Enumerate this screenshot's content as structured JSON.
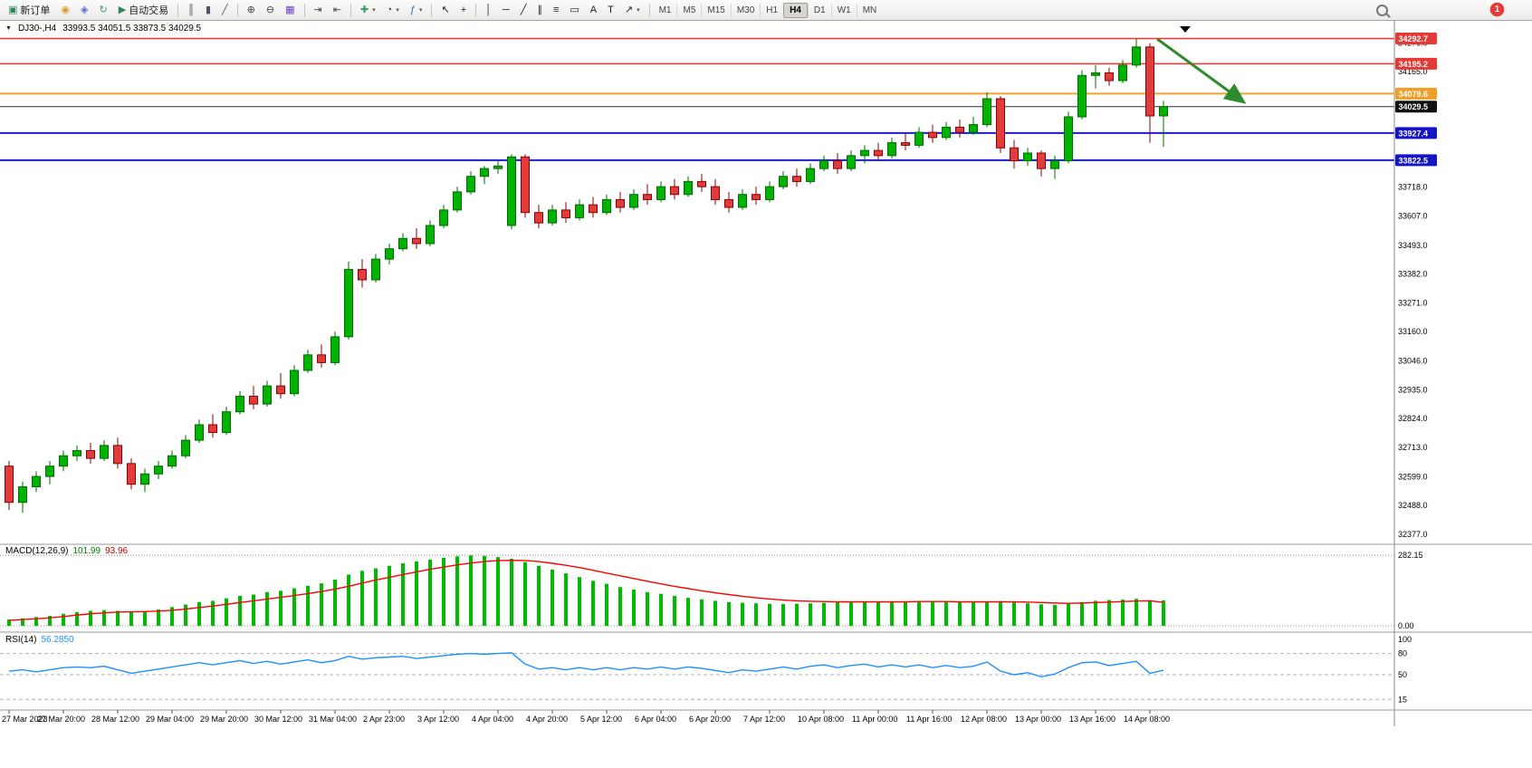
{
  "toolbar": {
    "caret_glyph": "▾",
    "groups": [
      [
        {
          "name": "new-order-button",
          "icon": "new-order-icon",
          "glyph": "▣",
          "color": "#2f855a",
          "label": "新订单"
        },
        {
          "name": "deposit-button",
          "icon": "coins-icon",
          "glyph": "◉",
          "color": "#d69e2e"
        },
        {
          "name": "community-button",
          "icon": "globe-icon",
          "glyph": "◈",
          "color": "#5a67d8"
        },
        {
          "name": "refresh-button",
          "icon": "refresh-icon",
          "glyph": "↻",
          "color": "#38a169"
        },
        {
          "name": "autotrading-button",
          "icon": "play-icon",
          "glyph": "▶",
          "color": "#2f855a",
          "label": "自动交易"
        }
      ],
      [
        {
          "name": "bar-chart-button",
          "icon": "bar-chart-icon",
          "glyph": "║",
          "color": "#4a5568"
        },
        {
          "name": "candlestick-chart-button",
          "icon": "candlestick-icon",
          "glyph": "▮",
          "color": "#4a5568"
        },
        {
          "name": "line-chart-button",
          "icon": "line-chart-icon",
          "glyph": "╱",
          "color": "#4a5568"
        }
      ],
      [
        {
          "name": "zoom-in-button",
          "icon": "zoom-in-icon",
          "glyph": "⊕",
          "color": "#444444"
        },
        {
          "name": "zoom-out-button",
          "icon": "zoom-out-icon",
          "glyph": "⊖",
          "color": "#444444"
        },
        {
          "name": "tile-windows-button",
          "icon": "tile-windows-icon",
          "glyph": "▦",
          "color": "#6b46c1"
        }
      ],
      [
        {
          "name": "auto-scroll-button",
          "icon": "auto-scroll-icon",
          "glyph": "⇥",
          "color": "#444444"
        },
        {
          "name": "chart-shift-button",
          "icon": "chart-shift-icon",
          "glyph": "⇤",
          "color": "#444444"
        }
      ],
      [
        {
          "name": "new-chart-button",
          "icon": "new-chart-icon",
          "glyph": "✚",
          "color": "#38a169",
          "caret": true
        },
        {
          "name": "periods-button",
          "icon": "clock-icon",
          "glyph": "◔",
          "color": "#444444",
          "caret": true
        },
        {
          "name": "indicators-button",
          "icon": "indicators-icon",
          "glyph": "ƒ",
          "color": "#2b6cb0",
          "caret": true
        }
      ],
      [
        {
          "name": "cursor-button",
          "icon": "cursor-icon",
          "glyph": "↖",
          "color": "#222222"
        },
        {
          "name": "crosshair-button",
          "icon": "crosshair-icon",
          "glyph": "+",
          "color": "#222222"
        }
      ],
      [
        {
          "name": "vertical-line-button",
          "icon": "vertical-line-icon",
          "glyph": "│",
          "color": "#222222"
        },
        {
          "name": "horizontal-line-button",
          "icon": "horizontal-line-icon",
          "glyph": "─",
          "color": "#222222"
        },
        {
          "name": "trendline-button",
          "icon": "trendline-icon",
          "glyph": "╱",
          "color": "#222222"
        },
        {
          "name": "channel-button",
          "icon": "channel-icon",
          "glyph": "∥",
          "color": "#222222"
        },
        {
          "name": "fibonacci-button",
          "icon": "fibonacci-icon",
          "glyph": "≡",
          "color": "#222222"
        },
        {
          "name": "shapes-button",
          "icon": "shapes-icon",
          "glyph": "▭",
          "color": "#222222"
        },
        {
          "name": "text-button",
          "icon": "text-icon",
          "glyph": "A",
          "color": "#222222"
        },
        {
          "name": "label-button",
          "icon": "label-icon",
          "glyph": "T",
          "color": "#222222"
        },
        {
          "name": "arrows-button",
          "icon": "arrow-object-icon",
          "glyph": "↗",
          "color": "#222222",
          "caret": true
        }
      ]
    ],
    "timeframes": [
      "M1",
      "M5",
      "M15",
      "M30",
      "H1",
      "H4",
      "D1",
      "W1",
      "MN"
    ],
    "active_timeframe": "H4",
    "notification_count": "1"
  },
  "chart": {
    "header": {
      "collapse_glyph": "▼",
      "symbol": "DJ30-,H4",
      "ohlc": "33993.5 34051.5 33873.5 34029.5"
    },
    "price_scale": [
      "34276.0",
      "34165.0",
      "33718.0",
      "33607.0",
      "33493.0",
      "33382.0",
      "33271.0",
      "33160.0",
      "33046.0",
      "32935.0",
      "32824.0",
      "32713.0",
      "32599.0",
      "32488.0",
      "32377.0"
    ],
    "hlines": [
      {
        "name": "resistance-line-1",
        "price": 34292.7,
        "label": "34292.7",
        "color": "#ff3030",
        "badge": "#e53935",
        "width": 1.5
      },
      {
        "name": "resistance-line-2",
        "price": 34195.2,
        "label": "34195.2",
        "color": "#ff3030",
        "badge": "#e53935",
        "width": 1.5
      },
      {
        "name": "pivot-line",
        "price": 34079.6,
        "label": "34079.6",
        "color": "#f0a030",
        "badge": "#ef9f28",
        "width": 2
      },
      {
        "name": "current-price-line",
        "price": 34029.5,
        "label": "34029.5",
        "color": "#303030",
        "badge": "#111111",
        "width": 1
      },
      {
        "name": "support-line-1",
        "price": 33927.4,
        "label": "33927.4",
        "color": "#1a1ad8",
        "badge": "#1515c8",
        "width": 2
      },
      {
        "name": "support-line-2",
        "price": 33822.5,
        "label": "33822.5",
        "color": "#1a1ad8",
        "badge": "#1515c8",
        "width": 2
      }
    ],
    "time_labels": [
      "27 Mar 2023",
      "27 Mar 20:00",
      "28 Mar 12:00",
      "29 Mar 04:00",
      "29 Mar 20:00",
      "30 Mar 12:00",
      "31 Mar 04:00",
      "2 Apr 23:00",
      "3 Apr 12:00",
      "4 Apr 04:00",
      "4 Apr 20:00",
      "5 Apr 12:00",
      "6 Apr 04:00",
      "6 Apr 20:00",
      "7 Apr 12:00",
      "10 Apr 08:00",
      "11 Apr 00:00",
      "11 Apr 16:00",
      "12 Apr 08:00",
      "13 Apr 00:00",
      "13 Apr 16:00",
      "14 Apr 08:00"
    ],
    "annotation_arrow_color": "#2e8b2e",
    "candle_up_color": "#00b300",
    "candle_up_border": "#006b00",
    "candle_down_color": "#e23b3b",
    "candle_down_border": "#8b0000"
  },
  "indicators": {
    "macd": {
      "label": "MACD(12,26,9)",
      "value_main": "101.99",
      "value_signal": "93.96",
      "scale_top": "282.15",
      "scale_bottom": "0.00",
      "histogram_color": "#00bb00",
      "signal_color": "#ff0000"
    },
    "rsi": {
      "label": "RSI(14)",
      "value": "56.2850",
      "levels": [
        "100",
        "80",
        "50",
        "15"
      ],
      "level_values": [
        100,
        80,
        50,
        15
      ],
      "line_color": "#1e90ff"
    }
  },
  "chart_data": {
    "type": "candlestick",
    "symbol": "DJ30-",
    "timeframe": "H4",
    "title": "DJ30-,H4 33993.5 34051.5 33873.5 34029.5",
    "ohlc_current": {
      "open": 33993.5,
      "high": 34051.5,
      "low": 33873.5,
      "close": 34029.5
    },
    "price_range": [
      32345,
      34340
    ],
    "x_range": [
      "27 Mar 2023",
      "14 Apr 2023 08:00"
    ],
    "candles": [
      [
        32640,
        32660,
        32470,
        32500
      ],
      [
        32500,
        32580,
        32460,
        32560
      ],
      [
        32560,
        32620,
        32540,
        32600
      ],
      [
        32600,
        32660,
        32570,
        32640
      ],
      [
        32640,
        32700,
        32620,
        32680
      ],
      [
        32680,
        32720,
        32660,
        32700
      ],
      [
        32700,
        32730,
        32650,
        32670
      ],
      [
        32670,
        32740,
        32660,
        32720
      ],
      [
        32720,
        32750,
        32630,
        32650
      ],
      [
        32650,
        32670,
        32550,
        32570
      ],
      [
        32570,
        32630,
        32540,
        32610
      ],
      [
        32610,
        32660,
        32590,
        32640
      ],
      [
        32640,
        32700,
        32630,
        32680
      ],
      [
        32680,
        32760,
        32670,
        32740
      ],
      [
        32740,
        32820,
        32730,
        32800
      ],
      [
        32800,
        32840,
        32750,
        32770
      ],
      [
        32770,
        32870,
        32760,
        32850
      ],
      [
        32850,
        32930,
        32840,
        32910
      ],
      [
        32910,
        32950,
        32860,
        32880
      ],
      [
        32880,
        32970,
        32870,
        32950
      ],
      [
        32950,
        33000,
        32900,
        32920
      ],
      [
        32920,
        33030,
        32910,
        33010
      ],
      [
        33010,
        33090,
        33000,
        33070
      ],
      [
        33070,
        33110,
        33020,
        33040
      ],
      [
        33040,
        33160,
        33030,
        33140
      ],
      [
        33140,
        33430,
        33130,
        33400
      ],
      [
        33400,
        33440,
        33330,
        33360
      ],
      [
        33360,
        33460,
        33350,
        33440
      ],
      [
        33440,
        33500,
        33420,
        33480
      ],
      [
        33480,
        33540,
        33470,
        33520
      ],
      [
        33520,
        33560,
        33480,
        33500
      ],
      [
        33500,
        33590,
        33490,
        33570
      ],
      [
        33570,
        33650,
        33560,
        33630
      ],
      [
        33630,
        33720,
        33620,
        33700
      ],
      [
        33700,
        33780,
        33690,
        33760
      ],
      [
        33760,
        33800,
        33730,
        33790
      ],
      [
        33790,
        33820,
        33770,
        33800
      ],
      [
        33570,
        33845,
        33555,
        33835
      ],
      [
        33835,
        33845,
        33600,
        33620
      ],
      [
        33620,
        33650,
        33560,
        33580
      ],
      [
        33580,
        33650,
        33570,
        33630
      ],
      [
        33630,
        33660,
        33580,
        33600
      ],
      [
        33600,
        33670,
        33590,
        33650
      ],
      [
        33650,
        33680,
        33600,
        33620
      ],
      [
        33620,
        33690,
        33610,
        33670
      ],
      [
        33670,
        33700,
        33620,
        33640
      ],
      [
        33640,
        33710,
        33630,
        33690
      ],
      [
        33690,
        33730,
        33650,
        33670
      ],
      [
        33670,
        33740,
        33660,
        33720
      ],
      [
        33720,
        33750,
        33670,
        33690
      ],
      [
        33690,
        33760,
        33680,
        33740
      ],
      [
        33740,
        33770,
        33700,
        33720
      ],
      [
        33720,
        33750,
        33650,
        33670
      ],
      [
        33670,
        33700,
        33620,
        33640
      ],
      [
        33640,
        33710,
        33630,
        33690
      ],
      [
        33690,
        33720,
        33650,
        33670
      ],
      [
        33670,
        33740,
        33660,
        33720
      ],
      [
        33720,
        33780,
        33710,
        33760
      ],
      [
        33760,
        33790,
        33720,
        33740
      ],
      [
        33740,
        33810,
        33730,
        33790
      ],
      [
        33790,
        33840,
        33780,
        33820
      ],
      [
        33820,
        33850,
        33770,
        33790
      ],
      [
        33790,
        33860,
        33780,
        33840
      ],
      [
        33840,
        33880,
        33810,
        33860
      ],
      [
        33860,
        33890,
        33820,
        33840
      ],
      [
        33840,
        33910,
        33830,
        33890
      ],
      [
        33890,
        33930,
        33860,
        33880
      ],
      [
        33880,
        33950,
        33870,
        33930
      ],
      [
        33930,
        33960,
        33890,
        33910
      ],
      [
        33910,
        33970,
        33900,
        33950
      ],
      [
        33950,
        33980,
        33910,
        33930
      ],
      [
        33930,
        33990,
        33920,
        33960
      ],
      [
        33960,
        34085,
        33950,
        34060
      ],
      [
        34060,
        34070,
        33850,
        33870
      ],
      [
        33870,
        33900,
        33790,
        33820
      ],
      [
        33820,
        33870,
        33800,
        33850
      ],
      [
        33850,
        33860,
        33760,
        33790
      ],
      [
        33790,
        33840,
        33750,
        33820
      ],
      [
        33820,
        34010,
        33810,
        33990
      ],
      [
        33990,
        34170,
        33980,
        34150
      ],
      [
        34150,
        34190,
        34100,
        34160
      ],
      [
        34160,
        34180,
        34110,
        34130
      ],
      [
        34130,
        34210,
        34120,
        34190
      ],
      [
        34190,
        34292,
        34180,
        34260
      ],
      [
        34260,
        34275,
        33890,
        33993.5
      ],
      [
        33993.5,
        34051.5,
        33873.5,
        34029.5
      ]
    ],
    "macd_histogram": [
      25,
      30,
      35,
      40,
      48,
      55,
      60,
      63,
      60,
      55,
      58,
      65,
      75,
      85,
      95,
      100,
      110,
      120,
      125,
      135,
      140,
      150,
      160,
      170,
      185,
      205,
      220,
      230,
      240,
      250,
      258,
      265,
      272,
      278,
      282,
      280,
      275,
      268,
      255,
      240,
      225,
      210,
      195,
      180,
      168,
      155,
      145,
      135,
      128,
      120,
      112,
      106,
      100,
      95,
      92,
      90,
      88,
      87,
      88,
      90,
      92,
      94,
      95,
      96,
      96,
      97,
      98,
      98,
      97,
      96,
      95,
      94,
      96,
      99,
      95,
      90,
      86,
      84,
      88,
      95,
      100,
      103,
      105,
      108,
      102,
      101.99
    ],
    "macd_signal": [
      22,
      25,
      28,
      32,
      37,
      43,
      48,
      52,
      55,
      56,
      57,
      59,
      62,
      67,
      73,
      79,
      86,
      93,
      100,
      107,
      114,
      121,
      129,
      137,
      147,
      158,
      171,
      183,
      194,
      205,
      216,
      226,
      235,
      244,
      251,
      257,
      261,
      262,
      261,
      257,
      250,
      242,
      233,
      222,
      211,
      200,
      189,
      178,
      168,
      158,
      149,
      140,
      132,
      125,
      118,
      112,
      107,
      103,
      100,
      98,
      97,
      96,
      96,
      96,
      96,
      96,
      96,
      97,
      97,
      97,
      96,
      96,
      96,
      96,
      96,
      95,
      93,
      91,
      90,
      91,
      93,
      95,
      97,
      99,
      100,
      93.96
    ],
    "rsi": [
      55,
      57,
      54,
      57,
      60,
      61,
      60,
      62,
      57,
      52,
      55,
      58,
      61,
      64,
      67,
      64,
      67,
      70,
      66,
      69,
      65,
      68,
      71,
      67,
      70,
      76,
      72,
      74,
      75,
      76,
      73,
      75,
      77,
      79,
      80,
      79,
      80,
      81,
      65,
      58,
      60,
      57,
      60,
      57,
      60,
      57,
      60,
      58,
      61,
      58,
      61,
      59,
      56,
      53,
      57,
      55,
      58,
      61,
      58,
      62,
      64,
      60,
      63,
      65,
      61,
      64,
      61,
      64,
      60,
      63,
      60,
      62,
      68,
      55,
      50,
      53,
      47,
      51,
      60,
      67,
      68,
      63,
      66,
      69,
      52,
      56.29
    ]
  }
}
